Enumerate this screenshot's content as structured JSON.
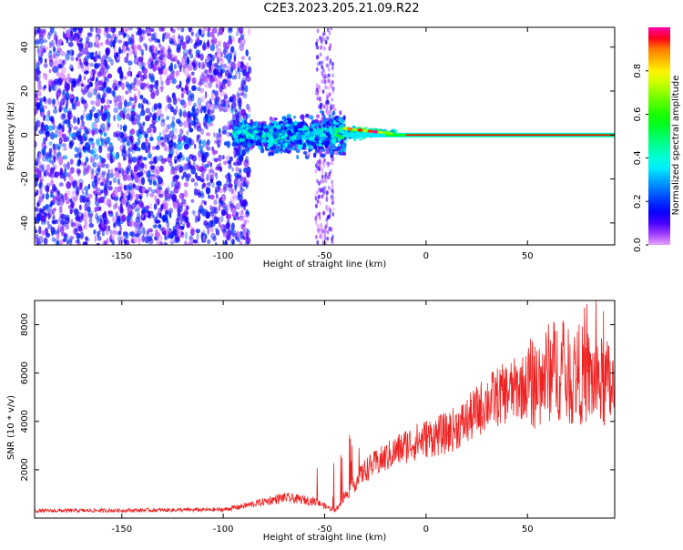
{
  "title": "C2E3.2023.205.21.09.R22",
  "chart_data": [
    {
      "type": "heatmap",
      "xlabel": "Height of straight line (km)",
      "ylabel": "Frequency (Hz)",
      "xlim": [
        -193,
        93
      ],
      "ylim": [
        -50,
        49
      ],
      "x_ticks": [
        -150,
        -100,
        -50,
        0,
        50
      ],
      "y_ticks": [
        -40,
        -20,
        0,
        20,
        40
      ],
      "colorbar": {
        "label": "Normalized spectral amplitude",
        "range": [
          0,
          1
        ],
        "ticks": [
          "0.0",
          "0.2",
          "0.4",
          "0.6",
          "0.8"
        ],
        "colormap": "gist_rainbow_reversed"
      },
      "features": {
        "noise_region_x": [
          -193,
          -95
        ],
        "burst_region_x": [
          -95,
          -40
        ],
        "line_region_x": [
          -40,
          93
        ],
        "line_frequency": 0,
        "secondary_noise_column_x": -50
      }
    },
    {
      "type": "line",
      "xlabel": "Height of straight line (km)",
      "ylabel": "SNR (10 * v/v)",
      "xlim": [
        -193,
        93
      ],
      "ylim": [
        0,
        9000
      ],
      "x_ticks": [
        -150,
        -100,
        -50,
        0,
        50
      ],
      "y_ticks": [
        2000,
        4000,
        6000,
        8000
      ],
      "line_color": "#ee2222",
      "series_envelope": {
        "x": [
          -193,
          -150,
          -100,
          -90,
          -70,
          -55,
          -50,
          -45,
          -40,
          -30,
          -20,
          -10,
          0,
          10,
          20,
          30,
          40,
          50,
          55,
          60,
          65,
          70,
          75,
          80,
          85,
          90,
          93
        ],
        "y": [
          300,
          320,
          350,
          500,
          850,
          700,
          500,
          300,
          900,
          2000,
          2500,
          3000,
          3300,
          3500,
          4000,
          4800,
          5200,
          5500,
          5600,
          6000,
          6200,
          5800,
          6000,
          5800,
          5600,
          5500,
          5200
        ]
      }
    }
  ]
}
